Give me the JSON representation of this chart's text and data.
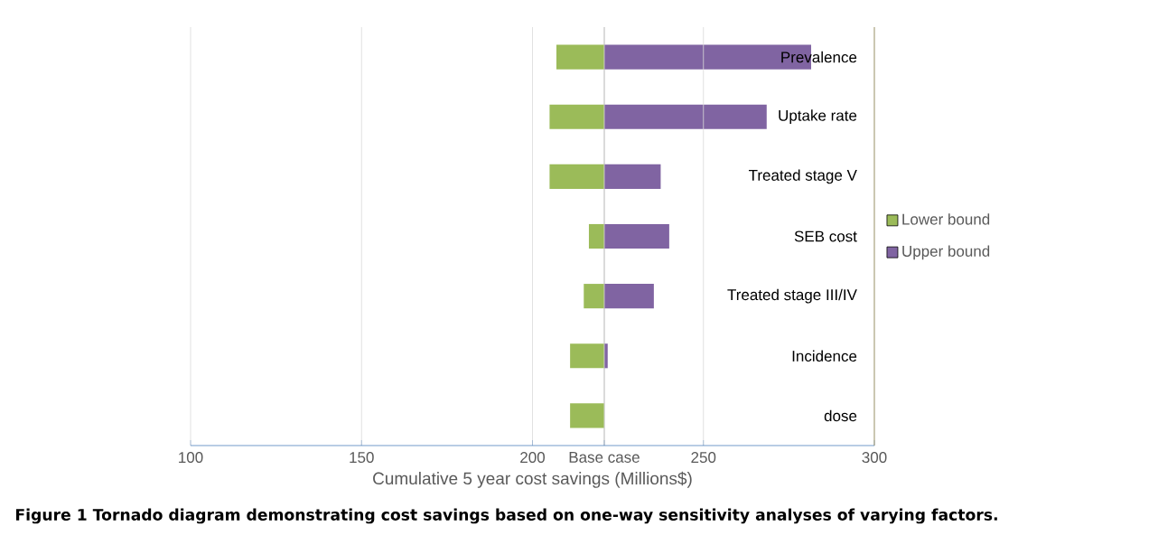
{
  "chart_data": {
    "type": "bar",
    "orientation": "horizontal",
    "categories": [
      "Prevalence",
      "Uptake rate",
      "Treated stage V",
      "SEB cost",
      "Treated stage III/IV",
      "Incidence",
      "dose"
    ],
    "series": [
      {
        "name": "Lower bound",
        "color": "#9bbb59",
        "base": [
          207,
          205,
          205,
          216.5,
          215,
          211,
          211
        ],
        "values": [
          14,
          16,
          16,
          4.5,
          6,
          10,
          10
        ]
      },
      {
        "name": "Upper bound",
        "color": "#8064a2",
        "base": [
          221,
          221,
          221,
          221,
          221,
          221,
          null
        ],
        "values": [
          60.5,
          47.5,
          16.5,
          19,
          14.5,
          1,
          null
        ]
      }
    ],
    "xlabel": "Cumulative 5 year cost savings (Millions$)",
    "xlim": [
      100,
      300
    ],
    "xticks": [
      100,
      150,
      200,
      {
        "value": 221,
        "label": "Base case"
      },
      250,
      300
    ],
    "ref_lines": [
      {
        "axis": "x",
        "value": 221,
        "color": "#a6a6a6"
      }
    ],
    "grid": "x",
    "legend": "right",
    "annotations": [
      "Figure 1 Tornado diagram demonstrating cost savings based on one-way sensitivity analyses of varying factors."
    ]
  }
}
